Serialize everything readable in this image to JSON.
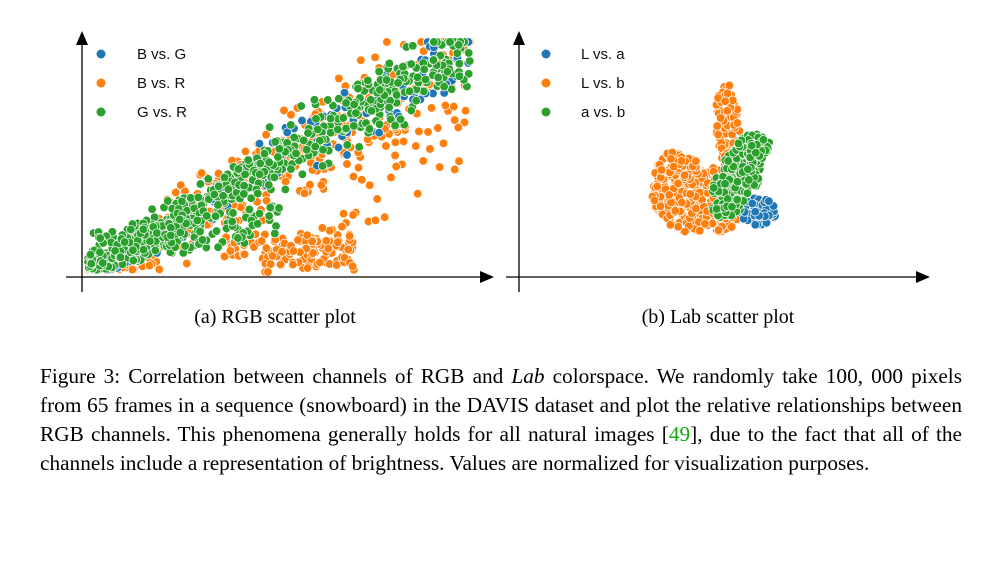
{
  "chart_data": [
    {
      "type": "scatter",
      "title": "",
      "subcaption": "(a) RGB scatter plot",
      "xlabel": "",
      "ylabel": "",
      "xlim": [
        0,
        1
      ],
      "ylim": [
        0,
        1
      ],
      "grid": false,
      "legend": "top-left",
      "series": [
        {
          "name": "B vs. G",
          "color": "#1f77b4"
        },
        {
          "name": "B vs. R",
          "color": "#ff7f0e"
        },
        {
          "name": "G vs. R",
          "color": "#2ca02c"
        }
      ]
    },
    {
      "type": "scatter",
      "title": "",
      "subcaption": "(b) Lab scatter plot",
      "xlabel": "",
      "ylabel": "",
      "xlim": [
        0,
        1
      ],
      "ylim": [
        0,
        1
      ],
      "grid": false,
      "legend": "top-left",
      "series": [
        {
          "name": "L vs. a",
          "color": "#1f77b4"
        },
        {
          "name": "L vs. b",
          "color": "#ff7f0e"
        },
        {
          "name": "a vs. b",
          "color": "#2ca02c"
        }
      ]
    }
  ],
  "caption": {
    "label": "Figure 3:",
    "part1": "Correlation between channels of RGB and",
    "math_lab": "Lab",
    "part2": "colorspace. We randomly take",
    "math_count": "100, 000",
    "part3": "pixels from 65 frames in a sequence (snowboard) in the DAVIS dataset and plot the relative relationships between RGB channels. This phenomena generally holds for all natural images [",
    "cite": "49",
    "part4": "], due to the fact that all of the channels include a representation of brightness. Values are normalized for visualization purposes."
  }
}
